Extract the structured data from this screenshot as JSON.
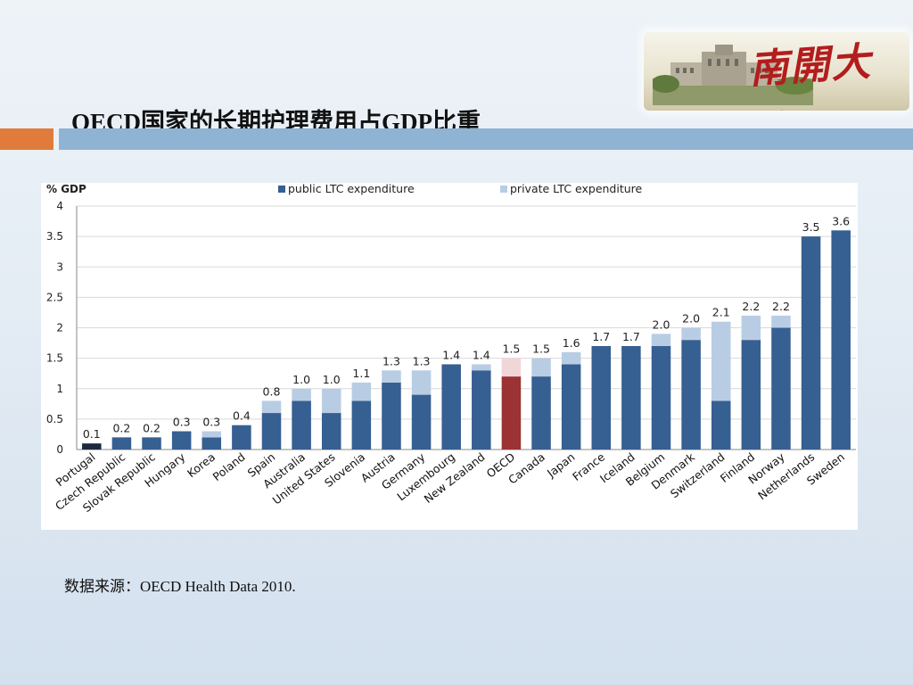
{
  "logo": {
    "text": "南開大學"
  },
  "slide": {
    "title": "OECD国家的长期护理费用占GDP比重",
    "source": "数据来源：OECD Health Data 2010."
  },
  "colors": {
    "public": "#365f92",
    "private": "#b8cde4",
    "oecd_public": "#9b3233",
    "oecd_private": "#f0d6d6",
    "portugal": "#1a2a40",
    "accent_orange": "#e07b3b",
    "accent_blue": "#8fb3d3"
  },
  "chart_data": {
    "type": "bar",
    "stacked": true,
    "ylabel": "% GDP",
    "ylim": [
      0,
      4
    ],
    "yticks": [
      0,
      0.5,
      1,
      1.5,
      2,
      2.5,
      3,
      3.5,
      4
    ],
    "ytick_labels": [
      "0",
      "0.5",
      "1",
      "1.5",
      "2",
      "2.5",
      "3",
      "3.5",
      "4"
    ],
    "grid": true,
    "legend_position": "top",
    "categories": [
      "Portugal",
      "Czech Republic",
      "Slovak Republic",
      "Hungary",
      "Korea",
      "Poland",
      "Spain",
      "Australia",
      "United States",
      "Slovenia",
      "Austria",
      "Germany",
      "Luxembourg",
      "New Zealand",
      "OECD",
      "Canada",
      "Japan",
      "France",
      "Iceland",
      "Belgium",
      "Denmark",
      "Switzerland",
      "Finland",
      "Norway",
      "Netherlands",
      "Sweden"
    ],
    "series": [
      {
        "name": "public LTC expenditure",
        "values": [
          0.1,
          0.2,
          0.2,
          0.3,
          0.2,
          0.4,
          0.6,
          0.8,
          0.6,
          0.8,
          1.1,
          0.9,
          1.4,
          1.3,
          1.2,
          1.2,
          1.4,
          1.7,
          1.7,
          1.7,
          1.8,
          0.8,
          1.8,
          2.0,
          3.5,
          3.6
        ]
      },
      {
        "name": "private LTC expenditure",
        "values": [
          0,
          0,
          0,
          0,
          0.1,
          0,
          0.2,
          0.2,
          0.4,
          0.3,
          0.2,
          0.4,
          0,
          0.1,
          0.3,
          0.3,
          0.2,
          0,
          0,
          0.2,
          0.2,
          1.3,
          0.4,
          0.2,
          0,
          0
        ]
      }
    ],
    "data_labels": [
      "0.1",
      "0.2",
      "0.2",
      "0.3",
      "0.3",
      "0.4",
      "0.8",
      "1.0",
      "1.0",
      "1.1",
      "1.3",
      "1.3",
      "1.4",
      "1.4",
      "1.5",
      "1.5",
      "1.6",
      "1.7",
      "1.7",
      "2.0",
      "2.0",
      "2.1",
      "2.2",
      "2.2",
      "3.5",
      "3.6"
    ],
    "highlight": {
      "OECD": "oecd",
      "Portugal": "portugal"
    }
  }
}
